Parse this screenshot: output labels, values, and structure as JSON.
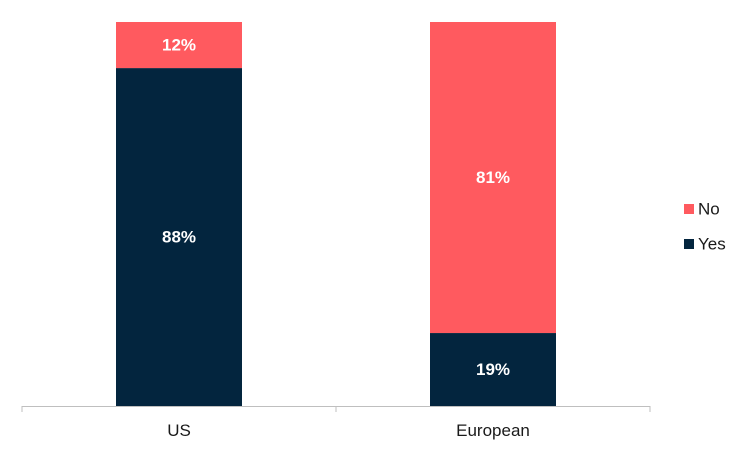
{
  "chart_data": {
    "type": "bar",
    "stacked": true,
    "percent_stacked": true,
    "categories": [
      "US",
      "European"
    ],
    "series": [
      {
        "name": "Yes",
        "values": [
          88,
          19
        ],
        "labels": [
          "88%",
          "19%"
        ],
        "color": "#03253e"
      },
      {
        "name": "No",
        "values": [
          12,
          81
        ],
        "labels": [
          "12%",
          "81%"
        ],
        "color": "#ff5a5f"
      }
    ],
    "ylim": [
      0,
      100
    ],
    "grid": false,
    "legend_position": "right",
    "title": "",
    "xlabel": "",
    "ylabel": ""
  }
}
